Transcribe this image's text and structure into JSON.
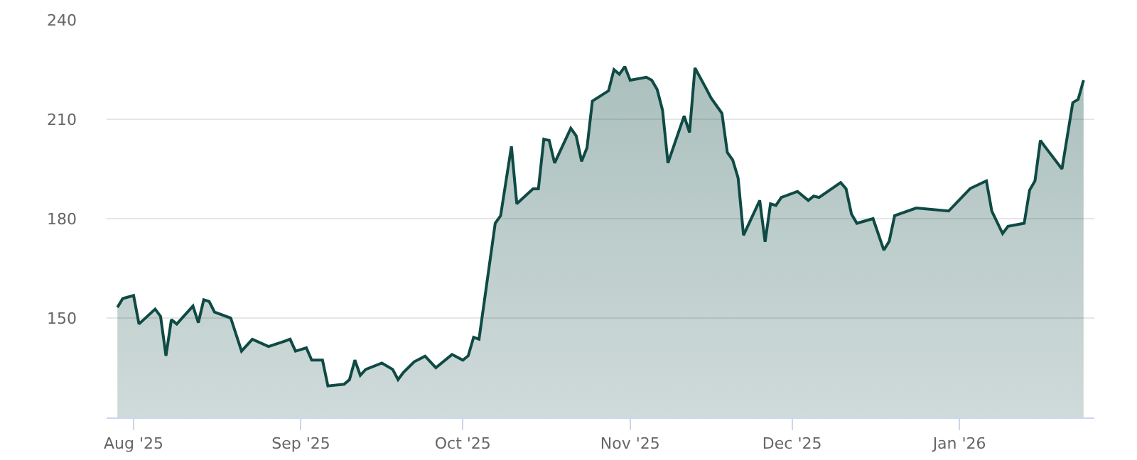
{
  "chart_data": {
    "type": "area",
    "x": [
      "2025-07-29",
      "2025-07-30",
      "2025-08-01",
      "2025-08-02",
      "2025-08-05",
      "2025-08-06",
      "2025-08-07",
      "2025-08-08",
      "2025-08-09",
      "2025-08-12",
      "2025-08-13",
      "2025-08-14",
      "2025-08-15",
      "2025-08-16",
      "2025-08-19",
      "2025-08-21",
      "2025-08-23",
      "2025-08-26",
      "2025-08-29",
      "2025-08-30",
      "2025-08-31",
      "2025-09-01",
      "2025-09-02",
      "2025-09-03",
      "2025-09-05",
      "2025-09-06",
      "2025-09-09",
      "2025-09-10",
      "2025-09-11",
      "2025-09-12",
      "2025-09-13",
      "2025-09-16",
      "2025-09-18",
      "2025-09-19",
      "2025-09-20",
      "2025-09-22",
      "2025-09-24",
      "2025-09-26",
      "2025-09-29",
      "2025-10-01",
      "2025-10-02",
      "2025-10-03",
      "2025-10-04",
      "2025-10-07",
      "2025-10-08",
      "2025-10-10",
      "2025-10-11",
      "2025-10-14",
      "2025-10-15",
      "2025-10-16",
      "2025-10-17",
      "2025-10-18",
      "2025-10-21",
      "2025-10-22",
      "2025-10-23",
      "2025-10-24",
      "2025-10-25",
      "2025-10-28",
      "2025-10-29",
      "2025-10-30",
      "2025-10-31",
      "2025-11-01",
      "2025-11-04",
      "2025-11-05",
      "2025-11-06",
      "2025-11-07",
      "2025-11-08",
      "2025-11-11",
      "2025-11-12",
      "2025-11-13",
      "2025-11-15",
      "2025-11-16",
      "2025-11-18",
      "2025-11-19",
      "2025-11-20",
      "2025-11-21",
      "2025-11-22",
      "2025-11-25",
      "2025-11-26",
      "2025-11-27",
      "2025-11-28",
      "2025-11-29",
      "2025-12-02",
      "2025-12-04",
      "2025-12-05",
      "2025-12-06",
      "2025-12-10",
      "2025-12-11",
      "2025-12-12",
      "2025-12-13",
      "2025-12-16",
      "2025-12-18",
      "2025-12-19",
      "2025-12-20",
      "2025-12-24",
      "2025-12-30",
      "2026-01-03",
      "2026-01-06",
      "2026-01-07",
      "2026-01-09",
      "2026-01-10",
      "2026-01-13",
      "2026-01-14",
      "2026-01-15",
      "2026-01-16",
      "2026-01-17",
      "2026-01-20",
      "2026-01-22",
      "2026-01-23",
      "2026-01-24"
    ],
    "series": [
      {
        "color": "#0f4a44",
        "values": [
          153.2,
          155.9,
          156.8,
          148.2,
          152.7,
          150.5,
          138.6,
          149.5,
          148.2,
          153.6,
          148.6,
          155.5,
          155,
          151.8,
          150,
          140,
          143.6,
          141.4,
          143,
          143.6,
          140,
          140.5,
          141,
          137.3,
          137.3,
          129.5,
          130,
          131.4,
          137.3,
          132.7,
          134.5,
          136.4,
          134.5,
          131.4,
          133.6,
          136.8,
          138.5,
          135,
          139,
          137.3,
          138.6,
          144.2,
          143.6,
          178.6,
          180.9,
          201.8,
          184.5,
          189,
          189,
          204,
          203.6,
          196.8,
          207.3,
          205,
          197.3,
          201.4,
          215.5,
          218.6,
          225,
          223.6,
          225.9,
          221.8,
          222.7,
          221.8,
          219,
          212.7,
          196.8,
          211,
          206,
          225.5,
          219.5,
          216.4,
          211.8,
          200,
          197.7,
          192.3,
          175,
          185.5,
          173,
          184.5,
          184,
          186.4,
          188.2,
          185.5,
          186.8,
          186.4,
          190.9,
          189,
          181.4,
          178.6,
          180,
          170.5,
          173.2,
          180.9,
          183.2,
          182.3,
          189.1,
          191.4,
          182.3,
          175.5,
          177.7,
          178.6,
          188.6,
          191.4,
          203.6,
          201.4,
          195,
          215,
          216,
          221.8
        ]
      }
    ],
    "xlim": [
      "2025-07-27",
      "2026-01-26"
    ],
    "xticks": [
      {
        "value": "2025-08-01",
        "label": "Aug '25"
      },
      {
        "value": "2025-09-01",
        "label": "Sep '25"
      },
      {
        "value": "2025-10-01",
        "label": "Oct '25"
      },
      {
        "value": "2025-11-01",
        "label": "Nov '25"
      },
      {
        "value": "2025-12-01",
        "label": "Dec '25"
      },
      {
        "value": "2026-01-01",
        "label": "Jan '26"
      }
    ],
    "ylim": [
      120,
      240
    ],
    "yticks": [
      {
        "value": 150,
        "label": "150"
      },
      {
        "value": 180,
        "label": "180"
      },
      {
        "value": 210,
        "label": "210"
      },
      {
        "value": 240,
        "label": "240"
      }
    ],
    "grid": "y",
    "marker": "none",
    "line_style": "solid"
  }
}
